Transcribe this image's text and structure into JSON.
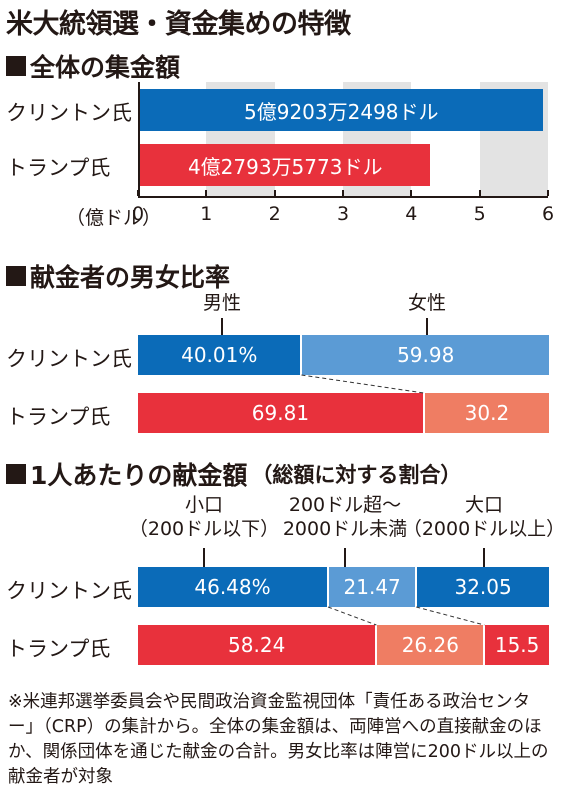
{
  "title": "米大統領選・資金集めの特徴",
  "colors": {
    "clinton": "#0b6bb8",
    "clinton_light": "#5b9bd5",
    "trump": "#e8313c",
    "trump_light": "#ef7d63",
    "grid_band": "#e3e3e3",
    "text": "#231815"
  },
  "chart_data": [
    {
      "type": "bar",
      "title": "全体の集金額",
      "categories": [
        "クリントン氏",
        "トランプ氏"
      ],
      "values": [
        5.92032498,
        4.27935773
      ],
      "value_labels": [
        "5億9203万2498ドル",
        "4億2793万5773ドル"
      ],
      "axis_unit": "（億ドル）",
      "ticks": [
        "0",
        "1",
        "2",
        "3",
        "4",
        "5",
        "6"
      ],
      "xlim": [
        0,
        6
      ]
    },
    {
      "type": "bar",
      "title": "献金者の男女比率",
      "categories": [
        "クリントン氏",
        "トランプ氏"
      ],
      "segment_labels": [
        "男性",
        "女性"
      ],
      "series": [
        {
          "values": [
            40.01,
            69.81
          ],
          "labels": [
            "40.01%",
            "69.81"
          ]
        },
        {
          "values": [
            59.98,
            30.2
          ],
          "labels": [
            "59.98",
            "30.2"
          ]
        }
      ]
    },
    {
      "type": "bar",
      "title": "1人あたりの献金額",
      "subtitle": "（総額に対する割合）",
      "categories": [
        "クリントン氏",
        "トランプ氏"
      ],
      "segment_labels": [
        [
          "小口",
          "（200ドル以下）"
        ],
        [
          "200ドル超～",
          "2000ドル未満"
        ],
        [
          "大口",
          "（2000ドル以上）"
        ]
      ],
      "series": [
        {
          "values": [
            46.48,
            58.24
          ],
          "labels": [
            "46.48%",
            "58.24"
          ]
        },
        {
          "values": [
            21.47,
            26.26
          ],
          "labels": [
            "21.47",
            "26.26"
          ]
        },
        {
          "values": [
            32.05,
            15.5
          ],
          "labels": [
            "32.05",
            "15.5"
          ]
        }
      ]
    }
  ],
  "note": "※米連邦選挙委員会や民間政治資金監視団体「責任ある政治センター」（CRP）の集計から。全体の集金額は、両陣営への直接献金のほか、関係団体を通じた献金の合計。男女比率は陣営に200ドル以上の献金者が対象"
}
